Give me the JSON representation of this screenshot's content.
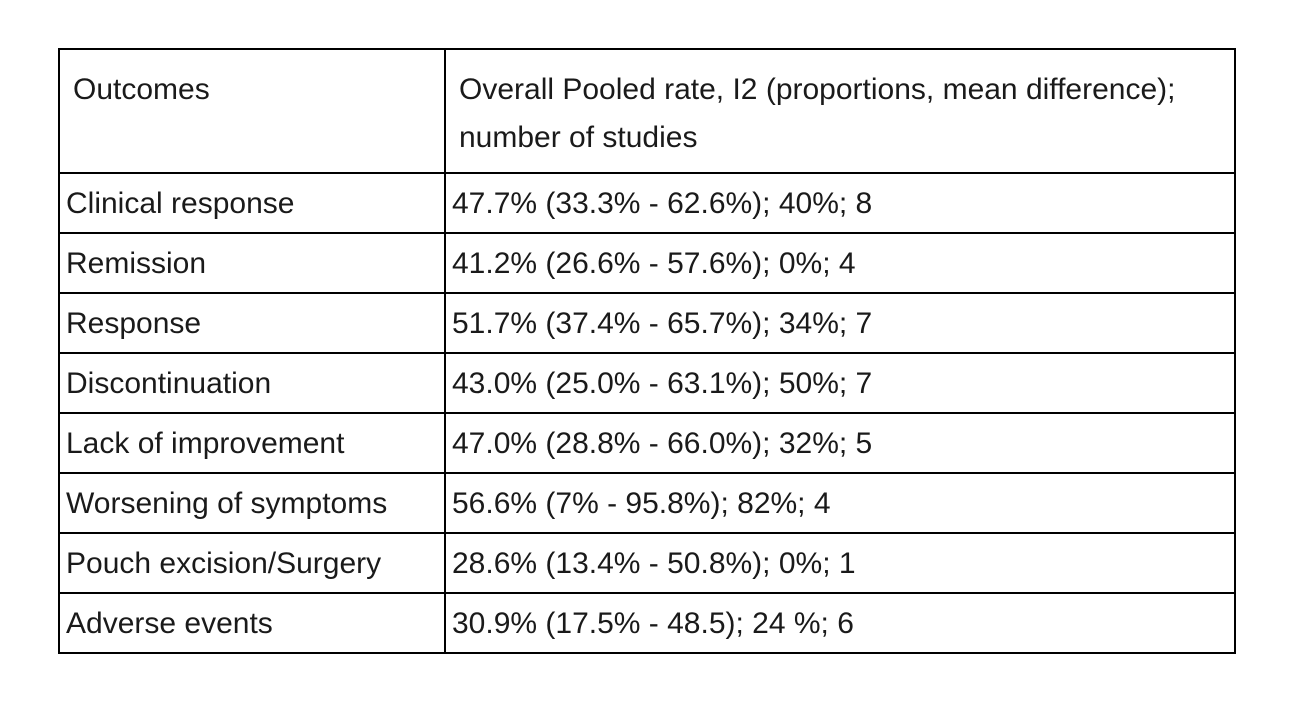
{
  "table": {
    "headers": {
      "outcome": "Outcomes",
      "rate": "Overall Pooled rate, I2 (proportions, mean difference); number of studies"
    },
    "rows": [
      {
        "outcome": "Clinical response",
        "rate": "47.7% (33.3% - 62.6%); 40%; 8"
      },
      {
        "outcome": "Remission",
        "rate": "41.2% (26.6% - 57.6%); 0%; 4"
      },
      {
        "outcome": "Response",
        "rate": "51.7% (37.4% - 65.7%); 34%; 7"
      },
      {
        "outcome": "Discontinuation",
        "rate": "43.0% (25.0% - 63.1%); 50%; 7"
      },
      {
        "outcome": "Lack of improvement",
        "rate": "47.0% (28.8% - 66.0%); 32%; 5"
      },
      {
        "outcome": "Worsening of symptoms",
        "rate": "56.6% (7% - 95.8%); 82%; 4"
      },
      {
        "outcome": "Pouch excision/Surgery",
        "rate": "28.6% (13.4% - 50.8%); 0%; 1"
      },
      {
        "outcome": "Adverse events",
        "rate": "30.9% (17.5% - 48.5); 24 %; 6"
      }
    ]
  }
}
